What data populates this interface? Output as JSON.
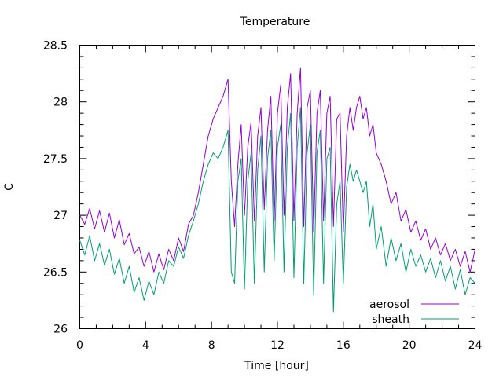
{
  "chart_data": {
    "type": "line",
    "title": "Temperature",
    "xlabel": "Time [hour]",
    "ylabel": "C",
    "xlim": [
      0,
      24
    ],
    "ylim": [
      26,
      28.5
    ],
    "xticks": [
      0,
      4,
      8,
      12,
      16,
      20,
      24
    ],
    "yticks": [
      26,
      26.5,
      27,
      27.5,
      28,
      28.5
    ],
    "ytick_labels": [
      "26",
      "26.5",
      "27",
      "27.5",
      "28",
      "28.5"
    ],
    "xminor_step": 1,
    "yminor_step": 0.1,
    "grid": false,
    "legend_position": "bottom-right",
    "series": [
      {
        "name": "aerosol",
        "color": "#9400d3",
        "x": [
          0,
          0.3,
          0.6,
          0.9,
          1.2,
          1.5,
          1.8,
          2.1,
          2.4,
          2.7,
          3,
          3.3,
          3.6,
          3.9,
          4.2,
          4.5,
          4.8,
          5.1,
          5.4,
          5.7,
          6,
          6.3,
          6.6,
          6.9,
          7.2,
          7.5,
          7.8,
          8.1,
          8.4,
          8.7,
          9,
          9.2,
          9.4,
          9.6,
          9.8,
          10,
          10.2,
          10.4,
          10.6,
          10.8,
          11,
          11.2,
          11.4,
          11.6,
          11.8,
          12,
          12.2,
          12.4,
          12.6,
          12.8,
          13,
          13.2,
          13.4,
          13.6,
          13.8,
          14,
          14.2,
          14.4,
          14.6,
          14.8,
          15,
          15.2,
          15.4,
          15.6,
          15.8,
          16,
          16.2,
          16.4,
          16.6,
          16.8,
          17,
          17.2,
          17.4,
          17.6,
          17.8,
          18,
          18.3,
          18.6,
          18.9,
          19.2,
          19.5,
          19.8,
          20.1,
          20.4,
          20.7,
          21,
          21.3,
          21.6,
          21.9,
          22.2,
          22.5,
          22.8,
          23.1,
          23.4,
          23.7,
          24
        ],
        "y": [
          27.0,
          26.92,
          27.06,
          26.88,
          27.04,
          26.85,
          27.02,
          26.8,
          26.96,
          26.74,
          26.84,
          26.66,
          26.72,
          26.55,
          26.68,
          26.5,
          26.66,
          26.52,
          26.7,
          26.6,
          26.8,
          26.68,
          26.92,
          27.0,
          27.2,
          27.45,
          27.7,
          27.85,
          27.95,
          28.05,
          28.2,
          27.3,
          26.9,
          27.45,
          27.8,
          27.0,
          27.6,
          27.82,
          26.95,
          27.7,
          27.95,
          27.05,
          27.75,
          28.05,
          26.95,
          27.9,
          28.15,
          27.0,
          27.95,
          28.25,
          26.95,
          27.9,
          28.3,
          26.9,
          27.95,
          28.1,
          26.85,
          27.9,
          28.1,
          26.95,
          27.9,
          28.05,
          26.9,
          27.85,
          27.9,
          26.85,
          27.7,
          27.95,
          27.75,
          27.95,
          28.05,
          27.85,
          27.95,
          27.7,
          27.8,
          27.55,
          27.45,
          27.3,
          27.1,
          27.2,
          26.95,
          27.05,
          26.85,
          26.95,
          26.78,
          26.88,
          26.7,
          26.8,
          26.65,
          26.75,
          26.6,
          26.7,
          26.55,
          26.68,
          26.5,
          26.7
        ]
      },
      {
        "name": "sheath",
        "color": "#009e73",
        "x": [
          0,
          0.3,
          0.6,
          0.9,
          1.2,
          1.5,
          1.8,
          2.1,
          2.4,
          2.7,
          3,
          3.3,
          3.6,
          3.9,
          4.2,
          4.5,
          4.8,
          5.1,
          5.4,
          5.7,
          6,
          6.3,
          6.6,
          6.9,
          7.2,
          7.5,
          7.8,
          8.1,
          8.4,
          8.7,
          9,
          9.2,
          9.4,
          9.6,
          9.8,
          10,
          10.2,
          10.4,
          10.6,
          10.8,
          11,
          11.2,
          11.4,
          11.6,
          11.8,
          12,
          12.2,
          12.4,
          12.6,
          12.8,
          13,
          13.2,
          13.4,
          13.6,
          13.8,
          14,
          14.2,
          14.4,
          14.6,
          14.8,
          15,
          15.2,
          15.4,
          15.6,
          15.8,
          16,
          16.2,
          16.4,
          16.6,
          16.8,
          17,
          17.2,
          17.4,
          17.6,
          17.8,
          18,
          18.3,
          18.6,
          18.9,
          19.2,
          19.5,
          19.8,
          20.1,
          20.4,
          20.7,
          21,
          21.3,
          21.6,
          21.9,
          22.2,
          22.5,
          22.8,
          23.1,
          23.4,
          23.7,
          24
        ],
        "y": [
          26.78,
          26.65,
          26.82,
          26.6,
          26.75,
          26.56,
          26.7,
          26.48,
          26.62,
          26.4,
          26.55,
          26.32,
          26.45,
          26.25,
          26.42,
          26.3,
          26.5,
          26.4,
          26.6,
          26.55,
          26.72,
          26.62,
          26.82,
          26.95,
          27.1,
          27.3,
          27.45,
          27.55,
          27.5,
          27.6,
          27.75,
          26.5,
          26.4,
          27.3,
          27.5,
          26.35,
          27.3,
          27.55,
          26.4,
          27.4,
          27.7,
          26.5,
          27.5,
          27.75,
          26.6,
          27.6,
          27.8,
          26.5,
          27.6,
          27.9,
          26.45,
          27.6,
          27.95,
          26.4,
          27.55,
          27.8,
          26.3,
          27.55,
          27.75,
          26.4,
          27.5,
          27.6,
          26.15,
          27.1,
          27.3,
          26.4,
          27.25,
          27.45,
          27.3,
          27.4,
          27.3,
          27.2,
          27.3,
          26.9,
          27.1,
          26.7,
          26.9,
          26.55,
          26.8,
          26.6,
          26.75,
          26.5,
          26.7,
          26.55,
          26.65,
          26.5,
          26.62,
          26.45,
          26.6,
          26.42,
          26.55,
          26.35,
          26.52,
          26.3,
          26.45,
          26.4
        ]
      }
    ]
  }
}
